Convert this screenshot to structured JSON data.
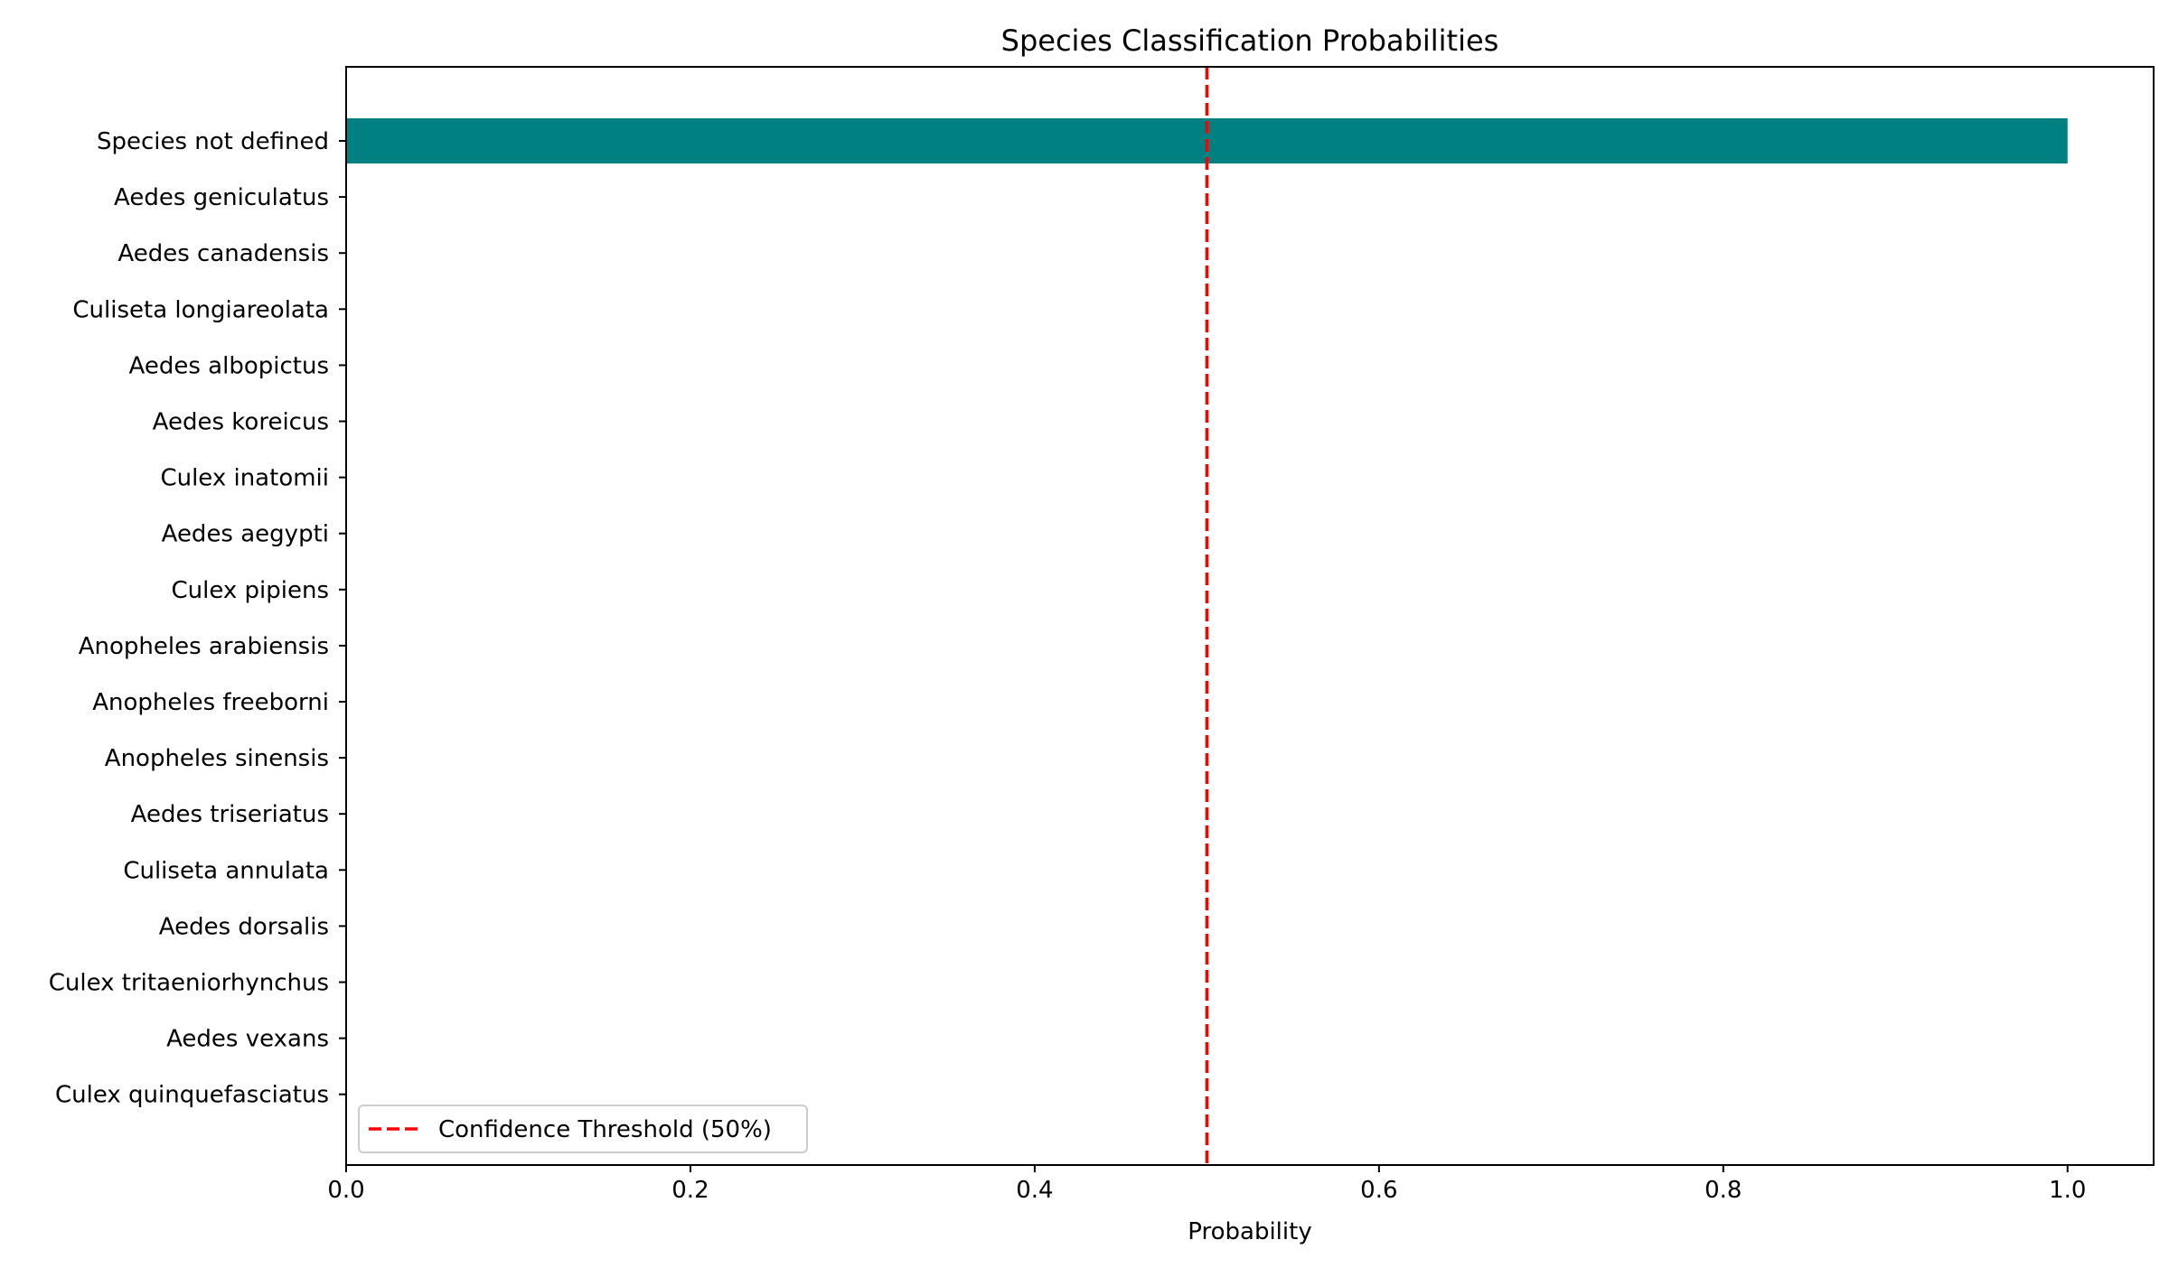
{
  "chart_data": {
    "type": "bar",
    "orientation": "horizontal",
    "title": "Species Classification Probabilities",
    "xlabel": "Probability",
    "ylabel": "",
    "xlim": [
      0.0,
      1.05
    ],
    "xticks": [
      0.0,
      0.2,
      0.4,
      0.6,
      0.8,
      1.0
    ],
    "xtick_labels": [
      "0.0",
      "0.2",
      "0.4",
      "0.6",
      "0.8",
      "1.0"
    ],
    "categories": [
      "Species not defined",
      "Aedes geniculatus",
      "Aedes canadensis",
      "Culiseta longiareolata",
      "Aedes albopictus",
      "Aedes koreicus",
      "Culex inatomii",
      "Aedes aegypti",
      "Culex pipiens",
      "Anopheles arabiensis",
      "Anopheles freeborni",
      "Anopheles sinensis",
      "Aedes triseriatus",
      "Culiseta annulata",
      "Aedes dorsalis",
      "Culex tritaeniorhynchus",
      "Aedes vexans",
      "Culex quinquefasciatus"
    ],
    "values": [
      1.0,
      0.0,
      0.0,
      0.0,
      0.0,
      0.0,
      0.0,
      0.0,
      0.0,
      0.0,
      0.0,
      0.0,
      0.0,
      0.0,
      0.0,
      0.0,
      0.0,
      0.0
    ],
    "bar_color": "#008080",
    "threshold": {
      "value": 0.5,
      "label": "Confidence Threshold (50%)",
      "color": "#ff0000",
      "style": "dashed"
    },
    "legend": {
      "placement": "lower-left"
    },
    "grid": false
  }
}
